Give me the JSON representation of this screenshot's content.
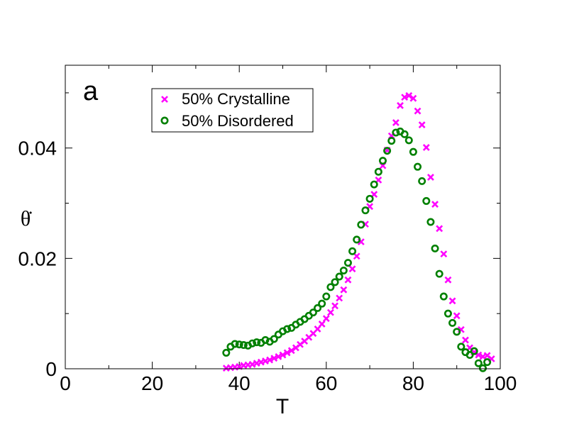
{
  "chart_data": {
    "type": "scatter",
    "panel_label": "a",
    "xlabel": "T",
    "ylabel": "θ̇",
    "xlim": [
      0,
      100
    ],
    "ylim": [
      0,
      0.055
    ],
    "xticks": [
      0,
      20,
      40,
      60,
      80,
      100
    ],
    "xtick_labels": [
      "0",
      "20",
      "40",
      "60",
      "80",
      "100"
    ],
    "yticks": [
      0,
      0.02,
      0.04
    ],
    "ytick_labels": [
      "0",
      "0.02",
      "0.04"
    ],
    "legend_position": "top-left",
    "series": [
      {
        "name": "50% Crystalline",
        "marker": "x",
        "color": "#ff00ff",
        "x": [
          37,
          38,
          39,
          40,
          41,
          42,
          43,
          44,
          45,
          46,
          47,
          48,
          49,
          50,
          51,
          52,
          53,
          54,
          55,
          56,
          57,
          58,
          59,
          60,
          61,
          62,
          63,
          64,
          65,
          66,
          67,
          68,
          69,
          70,
          71,
          72,
          73,
          74,
          75,
          76,
          77,
          78,
          79,
          80,
          81,
          82,
          83,
          84,
          85,
          86,
          87,
          88,
          89,
          90,
          91,
          92,
          93,
          94,
          95,
          96,
          97,
          98
        ],
        "y": [
          0.0001,
          0.0002,
          0.0003,
          0.0004,
          0.0006,
          0.0007,
          0.0008,
          0.001,
          0.0012,
          0.0014,
          0.0016,
          0.0019,
          0.0022,
          0.0025,
          0.0029,
          0.0033,
          0.0038,
          0.0044,
          0.005,
          0.0057,
          0.0064,
          0.0072,
          0.0081,
          0.0091,
          0.0102,
          0.0114,
          0.0128,
          0.0143,
          0.0161,
          0.0181,
          0.0204,
          0.023,
          0.0262,
          0.0294,
          0.0316,
          0.0342,
          0.0368,
          0.0396,
          0.0422,
          0.0446,
          0.0477,
          0.0492,
          0.0495,
          0.049,
          0.0467,
          0.0442,
          0.0401,
          0.0347,
          0.0298,
          0.0254,
          0.0208,
          0.0161,
          0.0123,
          0.0096,
          0.0071,
          0.0052,
          0.0038,
          0.003,
          0.0025,
          0.0022,
          0.0024,
          0.0018
        ]
      },
      {
        "name": "50% Disordered",
        "marker": "o",
        "color": "#008000",
        "x": [
          37,
          38,
          39,
          40,
          41,
          42,
          43,
          44,
          45,
          46,
          47,
          48,
          49,
          50,
          51,
          52,
          53,
          54,
          55,
          56,
          57,
          58,
          59,
          60,
          61,
          62,
          63,
          64,
          65,
          66,
          67,
          68,
          69,
          70,
          71,
          72,
          73,
          74,
          75,
          76,
          77,
          78,
          79,
          80,
          81,
          82,
          83,
          84,
          85,
          86,
          87,
          88,
          89,
          90,
          91,
          92,
          93,
          94,
          95,
          96,
          97
        ],
        "y": [
          0.0029,
          0.004,
          0.0045,
          0.0044,
          0.0043,
          0.0042,
          0.0046,
          0.0048,
          0.0047,
          0.0052,
          0.0049,
          0.0054,
          0.0062,
          0.0068,
          0.0072,
          0.0074,
          0.008,
          0.0085,
          0.009,
          0.0096,
          0.0102,
          0.011,
          0.0118,
          0.0131,
          0.0148,
          0.0157,
          0.0167,
          0.0178,
          0.0192,
          0.0213,
          0.0234,
          0.0261,
          0.0287,
          0.0308,
          0.0334,
          0.0357,
          0.0377,
          0.0395,
          0.0413,
          0.0428,
          0.043,
          0.0425,
          0.0414,
          0.0393,
          0.0366,
          0.034,
          0.0304,
          0.0266,
          0.0218,
          0.0172,
          0.0131,
          0.01,
          0.0083,
          0.0067,
          0.004,
          0.003,
          0.0025,
          0.0032,
          0.001,
          0.0001,
          0.0012
        ]
      }
    ]
  }
}
